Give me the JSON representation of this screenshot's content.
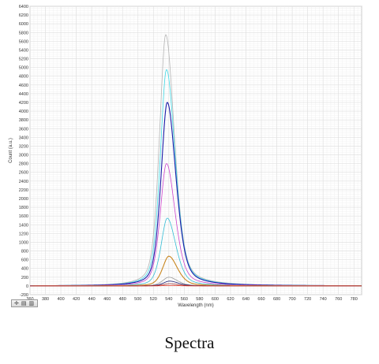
{
  "caption": "Spectra",
  "toolbar": {
    "icons": [
      "pan-zoom-icon",
      "save-image-icon",
      "copy-icon"
    ]
  },
  "chart_data": {
    "type": "line",
    "title": "",
    "xlabel": "Wavelength (nm)",
    "ylabel": "Count (a.u.)",
    "xlim": [
      360,
      790
    ],
    "ylim": [
      -200,
      6400
    ],
    "x_ticks": [
      360,
      380,
      400,
      420,
      440,
      460,
      480,
      500,
      520,
      540,
      560,
      580,
      600,
      620,
      640,
      660,
      680,
      700,
      720,
      740,
      760,
      780
    ],
    "y_ticks": [
      -200,
      0,
      200,
      400,
      600,
      800,
      1000,
      1200,
      1400,
      1600,
      1800,
      2000,
      2200,
      2400,
      2600,
      2800,
      3000,
      3200,
      3400,
      3600,
      3800,
      4000,
      4200,
      4400,
      4600,
      4800,
      5000,
      5200,
      5400,
      5600,
      5800,
      6000,
      6200,
      6400
    ],
    "x_tick_labels": [
      "360",
      "380",
      "400",
      "420",
      "440",
      "460",
      "480",
      "500",
      "520",
      "540",
      "560",
      "580",
      "600",
      "620",
      "640",
      "660",
      "680",
      "700",
      "720",
      "740",
      "760",
      "780"
    ],
    "y_tick_labels": [
      "-200",
      "0",
      "200",
      "400",
      "600",
      "800",
      "1000",
      "1200",
      "1400",
      "1600",
      "1800",
      "2000",
      "2200",
      "2400",
      "2600",
      "2800",
      "3000",
      "3200",
      "3400",
      "3600",
      "3800",
      "4000",
      "4200",
      "4400",
      "4600",
      "4800",
      "5000",
      "5200",
      "5400",
      "5600",
      "5800",
      "6000",
      "6200",
      "6400"
    ],
    "grid": true,
    "legend": "none",
    "series": [
      {
        "color": "#b4b4b4",
        "peak_x": 536,
        "peak_y": 5750
      },
      {
        "color": "#3fd9e6",
        "peak_x": 537,
        "peak_y": 4950
      },
      {
        "color": "#1c1ca8",
        "peak_x": 538,
        "peak_y": 4200
      },
      {
        "color": "#cc44cc",
        "peak_x": 537,
        "peak_y": 2800
      },
      {
        "color": "#33bcd4",
        "peak_x": 538,
        "peak_y": 1550
      },
      {
        "color": "#c8861e",
        "peak_x": 540,
        "peak_y": 680
      },
      {
        "color": "#9a9a9a",
        "peak_x": 540,
        "peak_y": 200
      },
      {
        "color": "#1a1a70",
        "peak_x": 541,
        "peak_y": 110
      },
      {
        "color": "#9b3030",
        "peak_x": 541,
        "peak_y": 50
      },
      {
        "color": "#e03a2a",
        "peak_x": 541,
        "peak_y": 10
      }
    ]
  }
}
